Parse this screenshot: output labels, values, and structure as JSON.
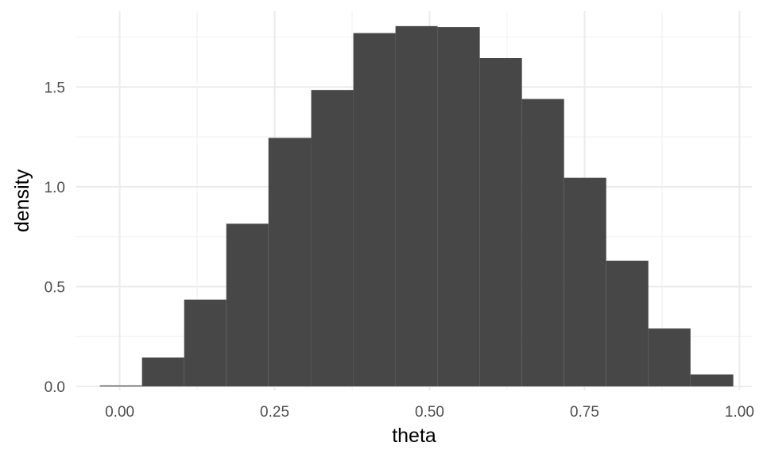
{
  "chart_data": {
    "type": "bar",
    "subtype": "histogram",
    "title": "",
    "xlabel": "theta",
    "ylabel": "density",
    "xlim": [
      -0.07,
      1.02
    ],
    "ylim": [
      -0.02,
      1.88
    ],
    "x_ticks": [
      0.0,
      0.25,
      0.5,
      0.75,
      1.0
    ],
    "x_tick_labels": [
      "0.00",
      "0.25",
      "0.50",
      "0.75",
      "1.00"
    ],
    "y_ticks": [
      0.0,
      0.5,
      1.0,
      1.5
    ],
    "y_tick_labels": [
      "0.0",
      "0.5",
      "1.0",
      "1.5"
    ],
    "grid": true,
    "bar_color": "#474747",
    "bins": [
      {
        "x0": -0.032,
        "x1": 0.036,
        "density": 0.005
      },
      {
        "x0": 0.036,
        "x1": 0.104,
        "density": 0.145
      },
      {
        "x0": 0.104,
        "x1": 0.172,
        "density": 0.435
      },
      {
        "x0": 0.172,
        "x1": 0.24,
        "density": 0.815
      },
      {
        "x0": 0.24,
        "x1": 0.309,
        "density": 1.245
      },
      {
        "x0": 0.309,
        "x1": 0.377,
        "density": 1.485
      },
      {
        "x0": 0.377,
        "x1": 0.445,
        "density": 1.77
      },
      {
        "x0": 0.445,
        "x1": 0.513,
        "density": 1.805
      },
      {
        "x0": 0.513,
        "x1": 0.581,
        "density": 1.8
      },
      {
        "x0": 0.581,
        "x1": 0.649,
        "density": 1.645
      },
      {
        "x0": 0.649,
        "x1": 0.717,
        "density": 1.44
      },
      {
        "x0": 0.717,
        "x1": 0.785,
        "density": 1.045
      },
      {
        "x0": 0.785,
        "x1": 0.853,
        "density": 0.63
      },
      {
        "x0": 0.853,
        "x1": 0.921,
        "density": 0.29
      },
      {
        "x0": 0.921,
        "x1": 0.99,
        "density": 0.06
      }
    ]
  }
}
